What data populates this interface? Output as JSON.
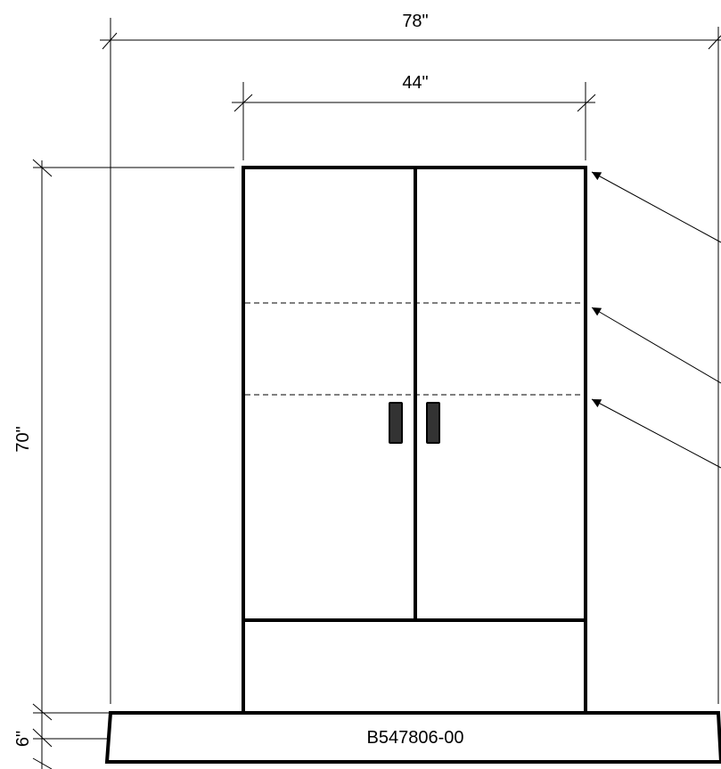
{
  "dimensions": {
    "overall_width": "78\"",
    "cabinet_width": "44\"",
    "cabinet_height": "70\"",
    "base_height": "6\""
  },
  "base": {
    "part_number": "B547806-00"
  }
}
